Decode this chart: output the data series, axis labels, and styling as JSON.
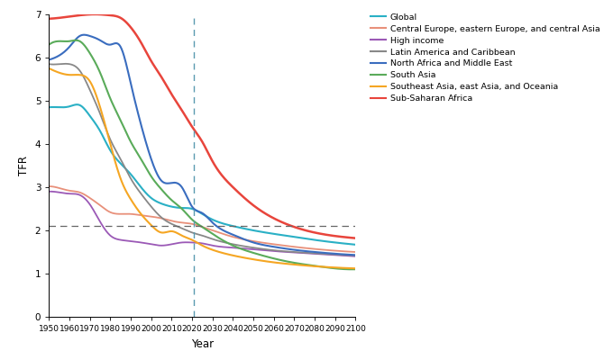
{
  "title": "",
  "xlabel": "Year",
  "ylabel": "TFR",
  "ylim": [
    0,
    7
  ],
  "xlim": [
    1950,
    2100
  ],
  "replacement_line": 2.1,
  "vline_year": 2021,
  "series": [
    {
      "name": "Global",
      "color": "#2ab0c5",
      "lw": 1.5,
      "data": [
        [
          1950,
          4.85
        ],
        [
          1955,
          4.85
        ],
        [
          1960,
          4.87
        ],
        [
          1965,
          4.9
        ],
        [
          1970,
          4.65
        ],
        [
          1975,
          4.3
        ],
        [
          1980,
          3.85
        ],
        [
          1985,
          3.55
        ],
        [
          1990,
          3.3
        ],
        [
          1995,
          3.0
        ],
        [
          2000,
          2.75
        ],
        [
          2005,
          2.62
        ],
        [
          2010,
          2.55
        ],
        [
          2015,
          2.52
        ],
        [
          2020,
          2.5
        ],
        [
          2025,
          2.38
        ],
        [
          2030,
          2.25
        ],
        [
          2040,
          2.1
        ],
        [
          2050,
          2.0
        ],
        [
          2060,
          1.92
        ],
        [
          2070,
          1.85
        ],
        [
          2080,
          1.78
        ],
        [
          2090,
          1.72
        ],
        [
          2100,
          1.67
        ]
      ]
    },
    {
      "name": "Central Europe, eastern Europe, and central Asia",
      "color": "#e8907a",
      "lw": 1.3,
      "data": [
        [
          1950,
          3.02
        ],
        [
          1955,
          2.98
        ],
        [
          1960,
          2.92
        ],
        [
          1965,
          2.88
        ],
        [
          1970,
          2.75
        ],
        [
          1975,
          2.58
        ],
        [
          1980,
          2.42
        ],
        [
          1985,
          2.38
        ],
        [
          1990,
          2.38
        ],
        [
          1995,
          2.35
        ],
        [
          2000,
          2.32
        ],
        [
          2005,
          2.28
        ],
        [
          2010,
          2.22
        ],
        [
          2015,
          2.18
        ],
        [
          2020,
          2.15
        ],
        [
          2025,
          2.08
        ],
        [
          2030,
          2.0
        ],
        [
          2040,
          1.85
        ],
        [
          2050,
          1.75
        ],
        [
          2060,
          1.68
        ],
        [
          2070,
          1.62
        ],
        [
          2080,
          1.57
        ],
        [
          2090,
          1.53
        ],
        [
          2100,
          1.5
        ]
      ]
    },
    {
      "name": "High income",
      "color": "#9b59b6",
      "lw": 1.3,
      "data": [
        [
          1950,
          2.9
        ],
        [
          1955,
          2.88
        ],
        [
          1960,
          2.85
        ],
        [
          1965,
          2.82
        ],
        [
          1970,
          2.6
        ],
        [
          1975,
          2.2
        ],
        [
          1980,
          1.88
        ],
        [
          1985,
          1.78
        ],
        [
          1990,
          1.75
        ],
        [
          1995,
          1.72
        ],
        [
          2000,
          1.68
        ],
        [
          2005,
          1.65
        ],
        [
          2010,
          1.68
        ],
        [
          2015,
          1.72
        ],
        [
          2020,
          1.72
        ],
        [
          2025,
          1.7
        ],
        [
          2030,
          1.65
        ],
        [
          2040,
          1.6
        ],
        [
          2050,
          1.56
        ],
        [
          2060,
          1.52
        ],
        [
          2070,
          1.49
        ],
        [
          2080,
          1.46
        ],
        [
          2090,
          1.43
        ],
        [
          2100,
          1.4
        ]
      ]
    },
    {
      "name": "Latin America and Caribbean",
      "color": "#888888",
      "lw": 1.3,
      "data": [
        [
          1950,
          5.85
        ],
        [
          1955,
          5.85
        ],
        [
          1960,
          5.85
        ],
        [
          1965,
          5.7
        ],
        [
          1970,
          5.25
        ],
        [
          1975,
          4.7
        ],
        [
          1980,
          4.1
        ],
        [
          1985,
          3.65
        ],
        [
          1990,
          3.2
        ],
        [
          1995,
          2.85
        ],
        [
          2000,
          2.55
        ],
        [
          2005,
          2.3
        ],
        [
          2010,
          2.15
        ],
        [
          2015,
          2.05
        ],
        [
          2020,
          1.95
        ],
        [
          2025,
          1.88
        ],
        [
          2030,
          1.8
        ],
        [
          2040,
          1.68
        ],
        [
          2050,
          1.6
        ],
        [
          2060,
          1.54
        ],
        [
          2070,
          1.5
        ],
        [
          2080,
          1.47
        ],
        [
          2090,
          1.44
        ],
        [
          2100,
          1.42
        ]
      ]
    },
    {
      "name": "North Africa and Middle East",
      "color": "#3a6dbf",
      "lw": 1.5,
      "data": [
        [
          1950,
          5.95
        ],
        [
          1955,
          6.05
        ],
        [
          1960,
          6.25
        ],
        [
          1965,
          6.5
        ],
        [
          1970,
          6.5
        ],
        [
          1975,
          6.4
        ],
        [
          1980,
          6.3
        ],
        [
          1985,
          6.25
        ],
        [
          1990,
          5.4
        ],
        [
          1995,
          4.45
        ],
        [
          2000,
          3.65
        ],
        [
          2005,
          3.15
        ],
        [
          2010,
          3.1
        ],
        [
          2015,
          3.0
        ],
        [
          2020,
          2.55
        ],
        [
          2025,
          2.4
        ],
        [
          2030,
          2.18
        ],
        [
          2040,
          1.9
        ],
        [
          2050,
          1.72
        ],
        [
          2060,
          1.62
        ],
        [
          2070,
          1.55
        ],
        [
          2080,
          1.5
        ],
        [
          2090,
          1.46
        ],
        [
          2100,
          1.43
        ]
      ]
    },
    {
      "name": "South Asia",
      "color": "#5aab5a",
      "lw": 1.5,
      "data": [
        [
          1950,
          6.3
        ],
        [
          1955,
          6.38
        ],
        [
          1960,
          6.38
        ],
        [
          1965,
          6.38
        ],
        [
          1970,
          6.1
        ],
        [
          1975,
          5.65
        ],
        [
          1980,
          5.05
        ],
        [
          1985,
          4.55
        ],
        [
          1990,
          4.05
        ],
        [
          1995,
          3.65
        ],
        [
          2000,
          3.25
        ],
        [
          2005,
          2.95
        ],
        [
          2010,
          2.7
        ],
        [
          2015,
          2.5
        ],
        [
          2020,
          2.25
        ],
        [
          2025,
          2.08
        ],
        [
          2030,
          1.92
        ],
        [
          2040,
          1.65
        ],
        [
          2050,
          1.48
        ],
        [
          2060,
          1.35
        ],
        [
          2070,
          1.25
        ],
        [
          2080,
          1.18
        ],
        [
          2090,
          1.12
        ],
        [
          2100,
          1.1
        ]
      ]
    },
    {
      "name": "Southeast Asia, east Asia, and Oceania",
      "color": "#f5a623",
      "lw": 1.5,
      "data": [
        [
          1950,
          5.75
        ],
        [
          1955,
          5.65
        ],
        [
          1960,
          5.6
        ],
        [
          1965,
          5.6
        ],
        [
          1970,
          5.45
        ],
        [
          1975,
          4.85
        ],
        [
          1980,
          4.0
        ],
        [
          1985,
          3.2
        ],
        [
          1990,
          2.72
        ],
        [
          1995,
          2.38
        ],
        [
          2000,
          2.12
        ],
        [
          2005,
          1.95
        ],
        [
          2010,
          1.98
        ],
        [
          2015,
          1.88
        ],
        [
          2020,
          1.78
        ],
        [
          2025,
          1.65
        ],
        [
          2030,
          1.55
        ],
        [
          2040,
          1.42
        ],
        [
          2050,
          1.33
        ],
        [
          2060,
          1.26
        ],
        [
          2070,
          1.21
        ],
        [
          2080,
          1.17
        ],
        [
          2090,
          1.14
        ],
        [
          2100,
          1.12
        ]
      ]
    },
    {
      "name": "Sub-Saharan Africa",
      "color": "#e8453c",
      "lw": 1.8,
      "data": [
        [
          1950,
          6.9
        ],
        [
          1955,
          6.92
        ],
        [
          1960,
          6.95
        ],
        [
          1965,
          6.98
        ],
        [
          1970,
          7.0
        ],
        [
          1975,
          7.0
        ],
        [
          1980,
          6.98
        ],
        [
          1985,
          6.92
        ],
        [
          1990,
          6.7
        ],
        [
          1995,
          6.35
        ],
        [
          2000,
          5.92
        ],
        [
          2005,
          5.55
        ],
        [
          2010,
          5.15
        ],
        [
          2015,
          4.78
        ],
        [
          2020,
          4.4
        ],
        [
          2025,
          4.05
        ],
        [
          2030,
          3.6
        ],
        [
          2040,
          3.0
        ],
        [
          2050,
          2.58
        ],
        [
          2060,
          2.28
        ],
        [
          2070,
          2.08
        ],
        [
          2080,
          1.95
        ],
        [
          2090,
          1.87
        ],
        [
          2100,
          1.82
        ]
      ]
    }
  ],
  "legend_entries": [
    {
      "label": "Global",
      "color": "#2ab0c5"
    },
    {
      "label": "Central Europe, eastern Europe, and central Asia",
      "color": "#e8907a"
    },
    {
      "label": "High income",
      "color": "#9b59b6"
    },
    {
      "label": "Latin America and Caribbean",
      "color": "#888888"
    },
    {
      "label": "North Africa and Middle East",
      "color": "#3a6dbf"
    },
    {
      "label": "South Asia",
      "color": "#5aab5a"
    },
    {
      "label": "Southeast Asia, east Asia, and Oceania",
      "color": "#f5a623"
    },
    {
      "label": "Sub-Saharan Africa",
      "color": "#e8453c"
    }
  ],
  "background_color": "#ffffff",
  "yticks": [
    0,
    1,
    2,
    3,
    4,
    5,
    6,
    7
  ],
  "xticks": [
    1950,
    1960,
    1970,
    1980,
    1990,
    2000,
    2010,
    2020,
    2030,
    2040,
    2050,
    2060,
    2070,
    2080,
    2090,
    2100
  ]
}
